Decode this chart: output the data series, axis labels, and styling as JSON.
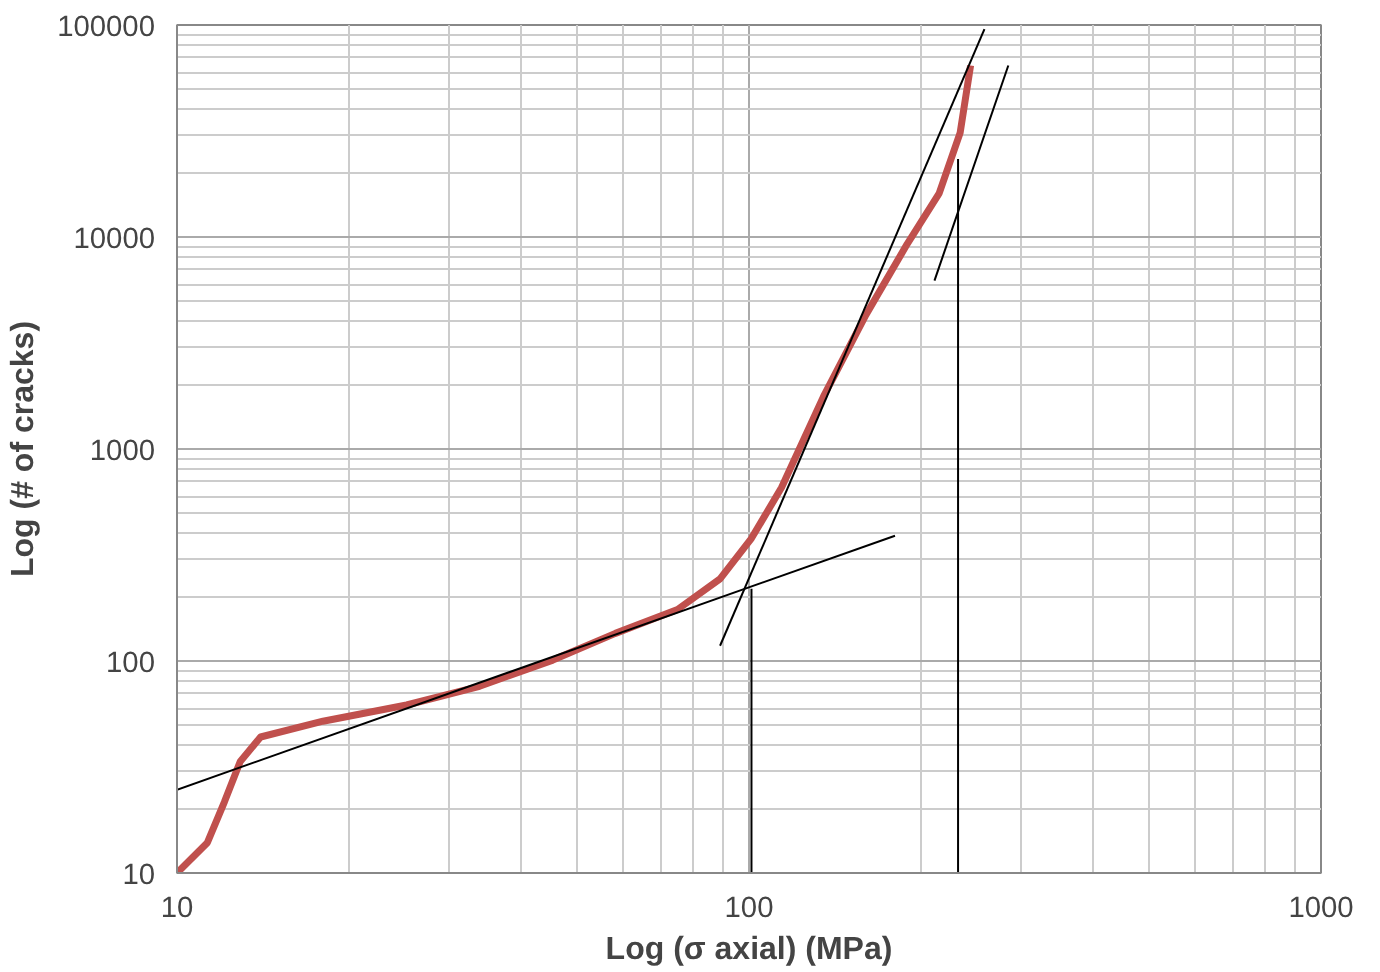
{
  "chart_data": {
    "type": "line",
    "xlabel": "Log (σ axial) (MPa)",
    "ylabel": "Log (# of cracks)",
    "log": "xy",
    "grid": true,
    "marker": "none",
    "line_style": "solid",
    "xlim": [
      10,
      1000
    ],
    "ylim": [
      10,
      100000
    ],
    "xticks": [
      10,
      100,
      1000
    ],
    "yticks": [
      10,
      100,
      1000,
      10000,
      100000
    ],
    "series": [
      {
        "color": "#c0504d",
        "x": [
          10,
          11.3,
          12.1,
          12.9,
          14,
          18,
          25.2,
          33.8,
          45.4,
          58.4,
          75,
          89,
          101,
          114,
          135,
          160,
          189,
          215,
          234,
          244
        ],
        "values": [
          10,
          13.9,
          21.6,
          33.6,
          43.8,
          52,
          62,
          76,
          101,
          135,
          175,
          244,
          379,
          658,
          1770,
          4280,
          9260,
          16070,
          31100,
          64400
        ]
      },
      {
        "color": "#000000",
        "x": [
          10,
          180
        ],
        "values": [
          24.7,
          390
        ]
      },
      {
        "color": "#000000",
        "x": [
          89,
          258
        ],
        "values": [
          118,
          95700
        ]
      },
      {
        "color": "#000000",
        "x": [
          211,
          284
        ],
        "values": [
          6230,
          64400
        ]
      },
      {
        "color": "#000000",
        "x": [
          101,
          101
        ],
        "values": [
          10,
          219
        ]
      },
      {
        "color": "#000000",
        "x": [
          232,
          232
        ],
        "values": [
          10,
          23350
        ]
      }
    ]
  }
}
